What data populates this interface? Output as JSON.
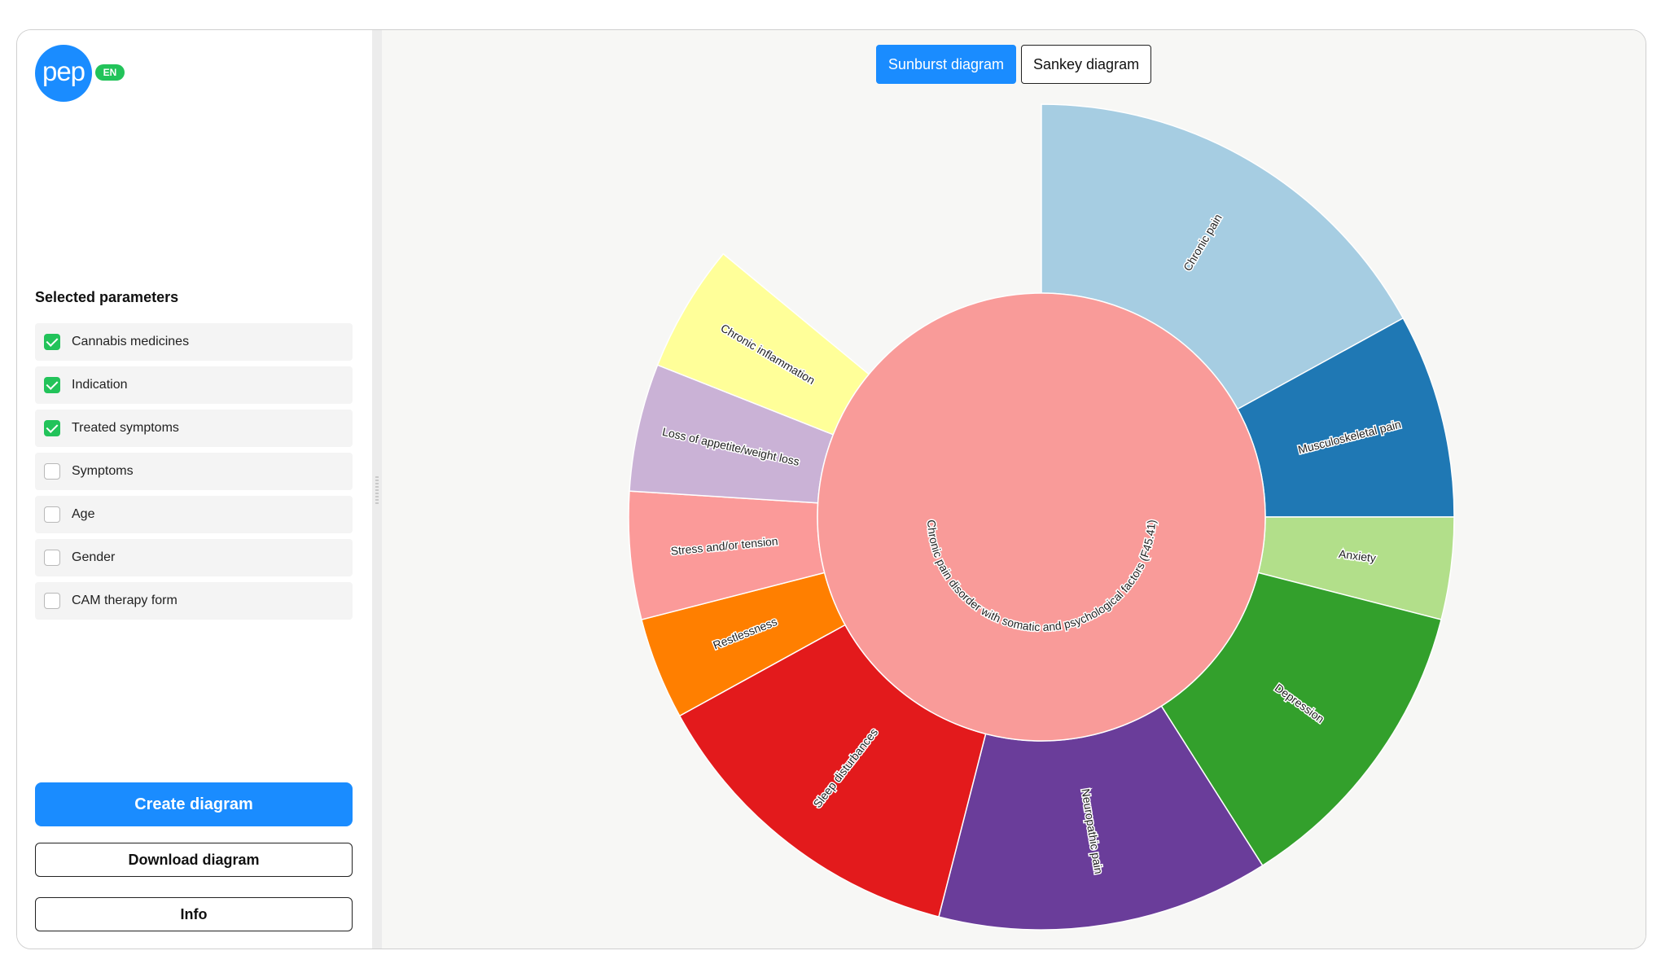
{
  "logo": {
    "text": "pep",
    "lang": "EN",
    "brand_color": "#1a8cff",
    "badge_color": "#22c35a"
  },
  "sidebar": {
    "params_title": "Selected parameters",
    "params": [
      {
        "label": "Cannabis medicines",
        "checked": true
      },
      {
        "label": "Indication",
        "checked": true
      },
      {
        "label": "Treated symptoms",
        "checked": true
      },
      {
        "label": "Symptoms",
        "checked": false
      },
      {
        "label": "Age",
        "checked": false
      },
      {
        "label": "Gender",
        "checked": false
      },
      {
        "label": "CAM therapy form",
        "checked": false
      }
    ],
    "create_label": "Create diagram",
    "download_label": "Download diagram",
    "info_label": "Info"
  },
  "tabs": [
    {
      "label": "Sunburst diagram",
      "active": true
    },
    {
      "label": "Sankey diagram",
      "active": false
    }
  ],
  "chart_data": {
    "type": "sunburst",
    "center": {
      "label": "Chronic pain disorder with somatic and psychological factors (F45.41)",
      "color": "#f99b99"
    },
    "segments": [
      {
        "label": "Chronic pain",
        "value": 17,
        "color": "#a6cde2"
      },
      {
        "label": "Musculoskeletal pain",
        "value": 8,
        "color": "#1f78b4"
      },
      {
        "label": "Anxiety",
        "value": 4,
        "color": "#b2df8a"
      },
      {
        "label": "Depression",
        "value": 12,
        "color": "#33a02c"
      },
      {
        "label": "Neuropathic pain",
        "value": 13,
        "color": "#6a3d9a"
      },
      {
        "label": "Sleep disturbances",
        "value": 13,
        "color": "#e31a1c"
      },
      {
        "label": "Restlessness",
        "value": 4,
        "color": "#ff7f00"
      },
      {
        "label": "Stress and/or tension",
        "value": 5,
        "color": "#fb9a99"
      },
      {
        "label": "Loss of appetite/weight loss",
        "value": 5,
        "color": "#cab2d6"
      },
      {
        "label": "Chronic inflammation",
        "value": 5,
        "color": "#ffff99"
      }
    ],
    "gaps": [
      {
        "after": "Chronic inflammation",
        "value": 14
      }
    ]
  }
}
